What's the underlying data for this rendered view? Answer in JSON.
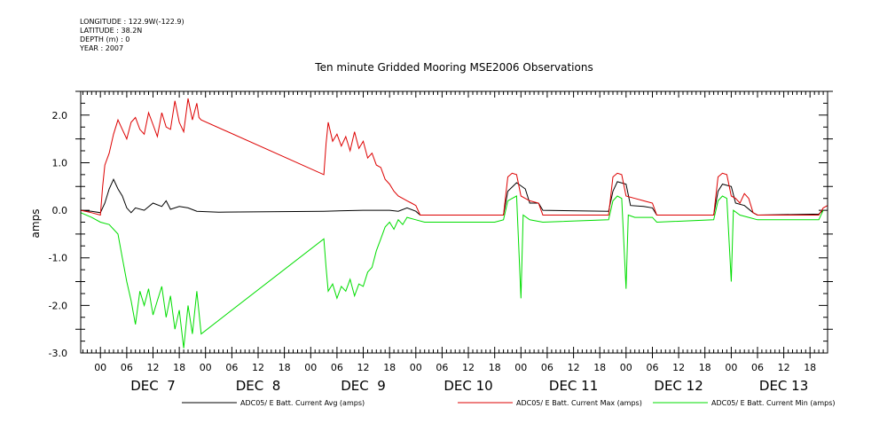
{
  "meta": {
    "longitude": "LONGITUDE : 122.9W(-122.9)",
    "latitude": "LATITUDE : 38.2N",
    "depth": "DEPTH (m) : 0",
    "year": "YEAR : 2007"
  },
  "chart_data": {
    "type": "line",
    "title": "Ten minute Gridded Mooring MSE2006 Observations",
    "xlabel": "",
    "ylabel": "amps",
    "xunit": "hours since DEC 7 00:00 (2007)",
    "xlim": [
      -4.5,
      166
    ],
    "ylim": [
      -3.0,
      2.5
    ],
    "yticks": [
      -3.0,
      -2.0,
      -1.0,
      0.0,
      1.0,
      2.0
    ],
    "ytick_labels": [
      "-3.0",
      "-2.0",
      "-1.0",
      "0.0",
      "1.0",
      "2.0"
    ],
    "xtick_hours": [
      0,
      6,
      12,
      18,
      24,
      30,
      36,
      42,
      48,
      54,
      60,
      66,
      72,
      78,
      84,
      90,
      96,
      102,
      108,
      114,
      120,
      126,
      132,
      138,
      144,
      150,
      156,
      162
    ],
    "xtick_labels": [
      "00",
      "06",
      "12",
      "18",
      "00",
      "06",
      "12",
      "18",
      "00",
      "06",
      "12",
      "18",
      "00",
      "06",
      "12",
      "18",
      "00",
      "06",
      "12",
      "18",
      "00",
      "06",
      "12",
      "18",
      "00",
      "06",
      "12",
      "18"
    ],
    "day_labels": [
      {
        "label": "DEC  7",
        "hour": 12
      },
      {
        "label": "DEC  8",
        "hour": 36
      },
      {
        "label": "DEC  9",
        "hour": 60
      },
      {
        "label": "DEC 10",
        "hour": 84
      },
      {
        "label": "DEC 11",
        "hour": 108
      },
      {
        "label": "DEC 12",
        "hour": 132
      },
      {
        "label": "DEC 13",
        "hour": 156
      }
    ],
    "series": [
      {
        "name": "ADC05/ E Batt. Current Avg (amps)",
        "color": "#000000",
        "points": [
          [
            -4.5,
            0.0
          ],
          [
            -2,
            -0.02
          ],
          [
            0,
            -0.05
          ],
          [
            1,
            0.15
          ],
          [
            2,
            0.45
          ],
          [
            3,
            0.65
          ],
          [
            4,
            0.45
          ],
          [
            5,
            0.3
          ],
          [
            6,
            0.05
          ],
          [
            7,
            -0.05
          ],
          [
            8,
            0.05
          ],
          [
            10,
            0.0
          ],
          [
            12,
            0.15
          ],
          [
            14,
            0.08
          ],
          [
            15,
            0.2
          ],
          [
            16,
            0.02
          ],
          [
            18,
            0.08
          ],
          [
            20,
            0.05
          ],
          [
            22,
            -0.02
          ],
          [
            27,
            -0.04
          ],
          [
            51,
            -0.02
          ],
          [
            60,
            0.0
          ],
          [
            66,
            0.0
          ],
          [
            68,
            -0.02
          ],
          [
            70,
            0.05
          ],
          [
            72,
            -0.02
          ],
          [
            73,
            -0.1
          ],
          [
            92,
            -0.1
          ],
          [
            93,
            0.4
          ],
          [
            95,
            0.58
          ],
          [
            97,
            0.45
          ],
          [
            98,
            0.15
          ],
          [
            100,
            0.15
          ],
          [
            101,
            0.0
          ],
          [
            116,
            -0.02
          ],
          [
            117,
            0.4
          ],
          [
            118,
            0.6
          ],
          [
            120,
            0.55
          ],
          [
            121,
            0.1
          ],
          [
            124,
            0.08
          ],
          [
            126,
            0.05
          ],
          [
            127,
            -0.1
          ],
          [
            140,
            -0.1
          ],
          [
            141,
            0.4
          ],
          [
            142,
            0.55
          ],
          [
            144,
            0.5
          ],
          [
            145,
            0.15
          ],
          [
            147,
            0.1
          ],
          [
            149,
            -0.05
          ],
          [
            150,
            -0.1
          ],
          [
            164,
            -0.08
          ],
          [
            165,
            0.0
          ]
        ]
      },
      {
        "name": "ADC05/ E Batt. Current Max (amps)",
        "color": "#dd0000",
        "points": [
          [
            -4.5,
            0.0
          ],
          [
            -2,
            -0.05
          ],
          [
            0,
            -0.1
          ],
          [
            0.5,
            0.5
          ],
          [
            1,
            0.95
          ],
          [
            2,
            1.2
          ],
          [
            3,
            1.6
          ],
          [
            4,
            1.9
          ],
          [
            5,
            1.7
          ],
          [
            6,
            1.5
          ],
          [
            7,
            1.85
          ],
          [
            8,
            1.95
          ],
          [
            9,
            1.7
          ],
          [
            10,
            1.6
          ],
          [
            11,
            2.05
          ],
          [
            12,
            1.8
          ],
          [
            13,
            1.55
          ],
          [
            14,
            2.05
          ],
          [
            15,
            1.75
          ],
          [
            16,
            1.7
          ],
          [
            17,
            2.3
          ],
          [
            18,
            1.85
          ],
          [
            19,
            1.65
          ],
          [
            20,
            2.35
          ],
          [
            21,
            1.9
          ],
          [
            22,
            2.25
          ],
          [
            22.5,
            1.95
          ],
          [
            23,
            1.9
          ],
          [
            51,
            0.75
          ],
          [
            51.5,
            1.4
          ],
          [
            52,
            1.85
          ],
          [
            53,
            1.45
          ],
          [
            54,
            1.6
          ],
          [
            55,
            1.35
          ],
          [
            56,
            1.55
          ],
          [
            57,
            1.25
          ],
          [
            58,
            1.65
          ],
          [
            59,
            1.3
          ],
          [
            60,
            1.45
          ],
          [
            61,
            1.1
          ],
          [
            62,
            1.2
          ],
          [
            63,
            0.95
          ],
          [
            64,
            0.9
          ],
          [
            65,
            0.65
          ],
          [
            66,
            0.55
          ],
          [
            67,
            0.4
          ],
          [
            68,
            0.3
          ],
          [
            69,
            0.25
          ],
          [
            70,
            0.2
          ],
          [
            71,
            0.15
          ],
          [
            72,
            0.1
          ],
          [
            73,
            -0.1
          ],
          [
            92,
            -0.1
          ],
          [
            93,
            0.7
          ],
          [
            94,
            0.78
          ],
          [
            95,
            0.75
          ],
          [
            96,
            0.3
          ],
          [
            97,
            0.25
          ],
          [
            98,
            0.2
          ],
          [
            100,
            0.15
          ],
          [
            101,
            -0.1
          ],
          [
            116,
            -0.1
          ],
          [
            117,
            0.7
          ],
          [
            118,
            0.78
          ],
          [
            119,
            0.75
          ],
          [
            120,
            0.3
          ],
          [
            122,
            0.25
          ],
          [
            124,
            0.2
          ],
          [
            126,
            0.15
          ],
          [
            127,
            -0.1
          ],
          [
            140,
            -0.1
          ],
          [
            141,
            0.7
          ],
          [
            142,
            0.78
          ],
          [
            143,
            0.75
          ],
          [
            144,
            0.3
          ],
          [
            145,
            0.25
          ],
          [
            146,
            0.15
          ],
          [
            147,
            0.35
          ],
          [
            148,
            0.25
          ],
          [
            149,
            -0.05
          ],
          [
            150,
            -0.1
          ],
          [
            164,
            -0.1
          ],
          [
            165,
            0.05
          ],
          [
            166,
            0.1
          ]
        ]
      },
      {
        "name": "ADC05/ E Batt. Current Min (amps)",
        "color": "#00dd00",
        "points": [
          [
            -4.5,
            -0.05
          ],
          [
            -2,
            -0.15
          ],
          [
            0,
            -0.25
          ],
          [
            2,
            -0.3
          ],
          [
            4,
            -0.5
          ],
          [
            5,
            -1.0
          ],
          [
            6,
            -1.5
          ],
          [
            7,
            -1.9
          ],
          [
            8,
            -2.4
          ],
          [
            9,
            -1.7
          ],
          [
            10,
            -2.0
          ],
          [
            11,
            -1.65
          ],
          [
            12,
            -2.2
          ],
          [
            13,
            -1.9
          ],
          [
            14,
            -1.6
          ],
          [
            15,
            -2.25
          ],
          [
            16,
            -1.8
          ],
          [
            17,
            -2.5
          ],
          [
            18,
            -2.1
          ],
          [
            19,
            -2.9
          ],
          [
            20,
            -2.0
          ],
          [
            21,
            -2.6
          ],
          [
            22,
            -1.7
          ],
          [
            23,
            -2.6
          ],
          [
            51,
            -0.6
          ],
          [
            51.5,
            -1.2
          ],
          [
            52,
            -1.7
          ],
          [
            53,
            -1.55
          ],
          [
            54,
            -1.85
          ],
          [
            55,
            -1.6
          ],
          [
            56,
            -1.7
          ],
          [
            57,
            -1.45
          ],
          [
            58,
            -1.8
          ],
          [
            59,
            -1.55
          ],
          [
            60,
            -1.6
          ],
          [
            61,
            -1.3
          ],
          [
            62,
            -1.2
          ],
          [
            63,
            -0.85
          ],
          [
            64,
            -0.6
          ],
          [
            65,
            -0.35
          ],
          [
            66,
            -0.25
          ],
          [
            67,
            -0.4
          ],
          [
            68,
            -0.2
          ],
          [
            69,
            -0.3
          ],
          [
            70,
            -0.15
          ],
          [
            72,
            -0.2
          ],
          [
            74,
            -0.25
          ],
          [
            90,
            -0.25
          ],
          [
            92,
            -0.2
          ],
          [
            93,
            0.2
          ],
          [
            94,
            0.25
          ],
          [
            95,
            0.3
          ],
          [
            96,
            -1.85
          ],
          [
            96.5,
            -0.1
          ],
          [
            98,
            -0.2
          ],
          [
            101,
            -0.25
          ],
          [
            116,
            -0.2
          ],
          [
            117,
            0.2
          ],
          [
            118,
            0.3
          ],
          [
            119,
            0.25
          ],
          [
            120,
            -1.65
          ],
          [
            120.5,
            -0.1
          ],
          [
            122,
            -0.15
          ],
          [
            126,
            -0.15
          ],
          [
            127,
            -0.25
          ],
          [
            140,
            -0.2
          ],
          [
            141,
            0.2
          ],
          [
            142,
            0.3
          ],
          [
            143,
            0.25
          ],
          [
            144,
            -1.5
          ],
          [
            144.5,
            0.0
          ],
          [
            146,
            -0.1
          ],
          [
            148,
            -0.15
          ],
          [
            150,
            -0.2
          ],
          [
            164,
            -0.2
          ],
          [
            165,
            0.0
          ]
        ]
      }
    ]
  }
}
